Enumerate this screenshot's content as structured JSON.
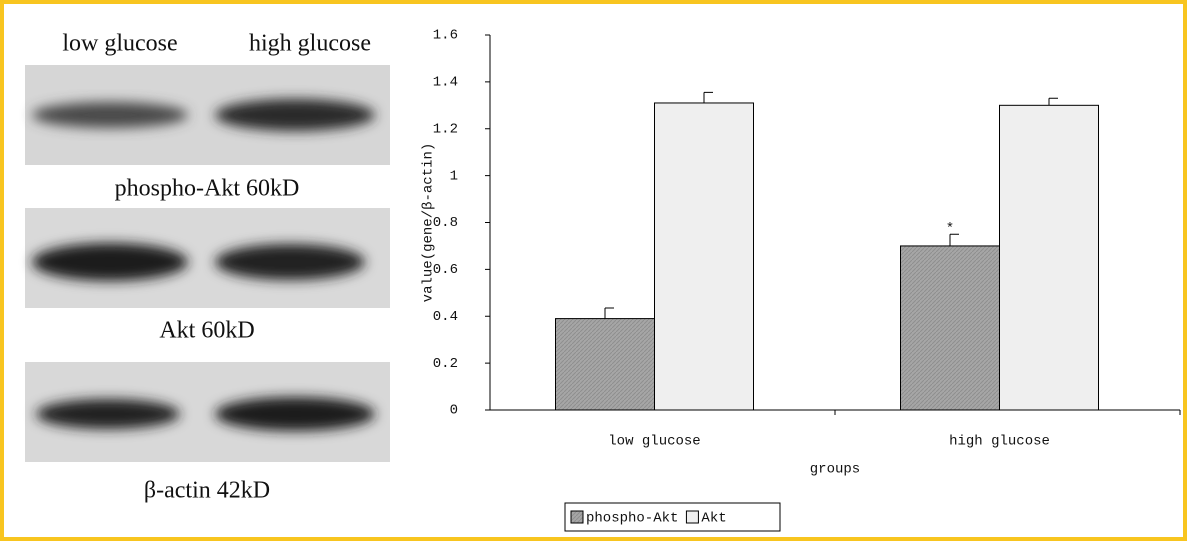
{
  "blot": {
    "lane_labels": [
      "low glucose",
      "high glucose"
    ],
    "panels": [
      {
        "label": "phospho-Akt 60kD"
      },
      {
        "label": "Akt 60kD"
      },
      {
        "label": "β-actin 42kD"
      }
    ]
  },
  "chart_data": {
    "type": "bar",
    "categories": [
      "low glucose",
      "high glucose"
    ],
    "series": [
      {
        "name": "phospho-Akt",
        "color": "#a6a6a6",
        "values": [
          0.39,
          0.7
        ],
        "errors": [
          0.045,
          0.05
        ]
      },
      {
        "name": "Akt",
        "color": "#efefef",
        "values": [
          1.31,
          1.3
        ],
        "errors": [
          0.045,
          0.03
        ]
      }
    ],
    "annotation": "*",
    "ylabel": "value(gene/β-actin)",
    "xlabel": "groups",
    "ylim": [
      0,
      1.6
    ],
    "yticks": [
      0,
      0.2,
      0.4,
      0.6,
      0.8,
      1,
      1.2,
      1.4,
      1.6
    ],
    "legend": "bottom"
  }
}
